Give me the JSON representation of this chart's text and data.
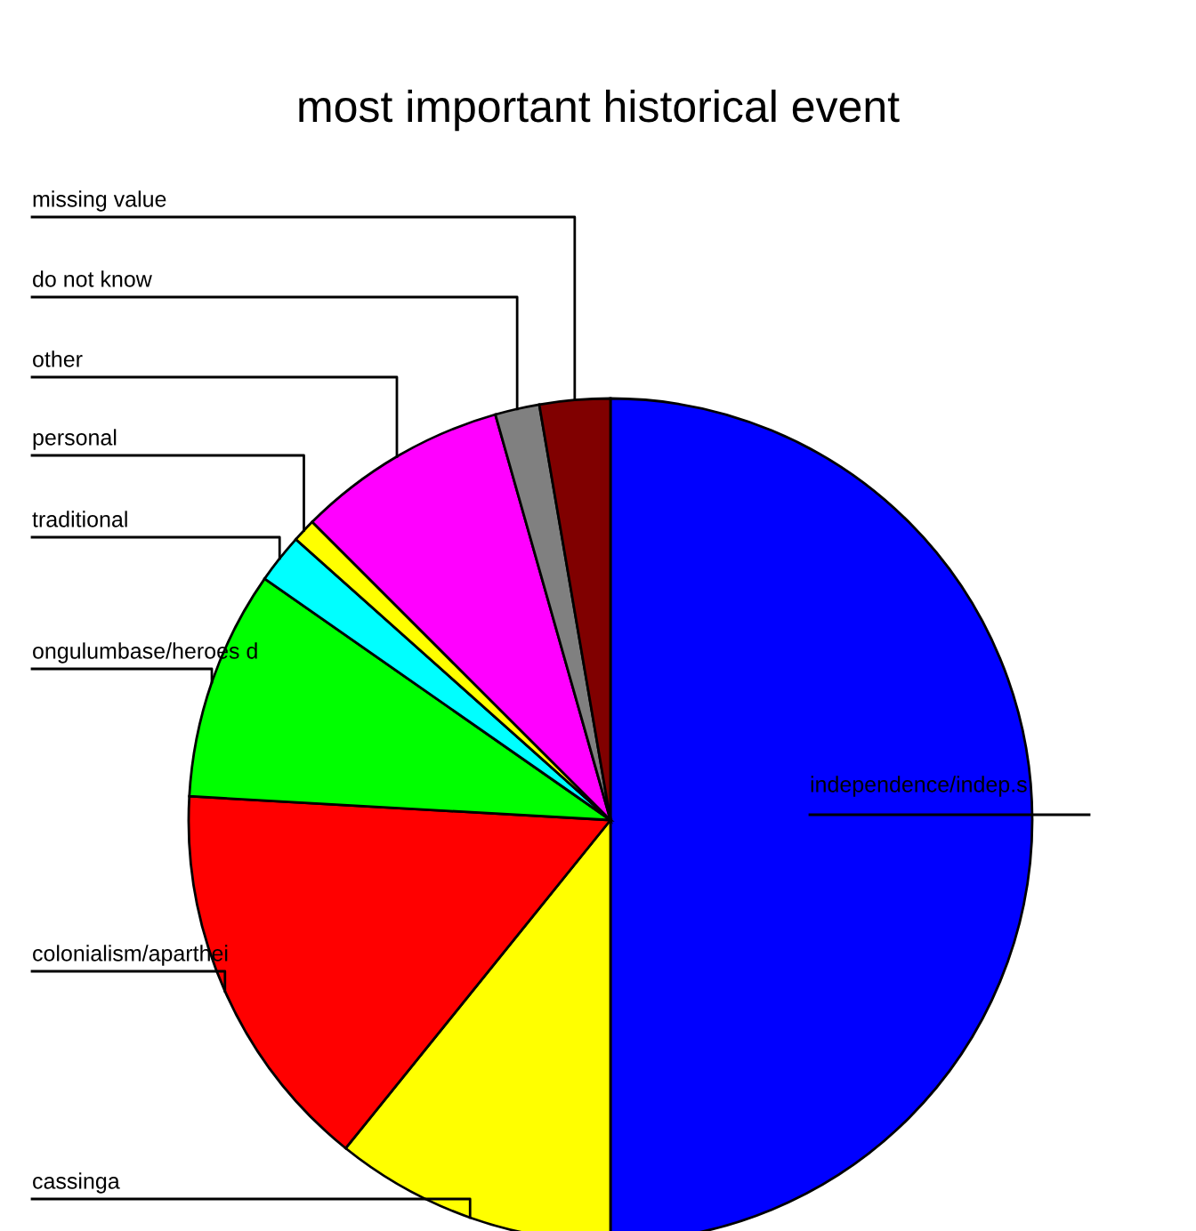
{
  "chart_data": {
    "type": "pie",
    "title": "most important historical event",
    "categories": [
      "independence/indep.s",
      "cassinga",
      "colonialism/aparthei",
      "ongulumbase/heroes d",
      "traditional",
      "personal",
      "other",
      "do not know",
      "missing value"
    ],
    "values": [
      50.0,
      10.8,
      15.1,
      8.8,
      1.9,
      0.9,
      8.1,
      1.7,
      2.7
    ],
    "colors": [
      "#0000ff",
      "#ffff00",
      "#ff0000",
      "#00ff00",
      "#00ffff",
      "#ffff00",
      "#ff00ff",
      "#808080",
      "#800000"
    ]
  }
}
